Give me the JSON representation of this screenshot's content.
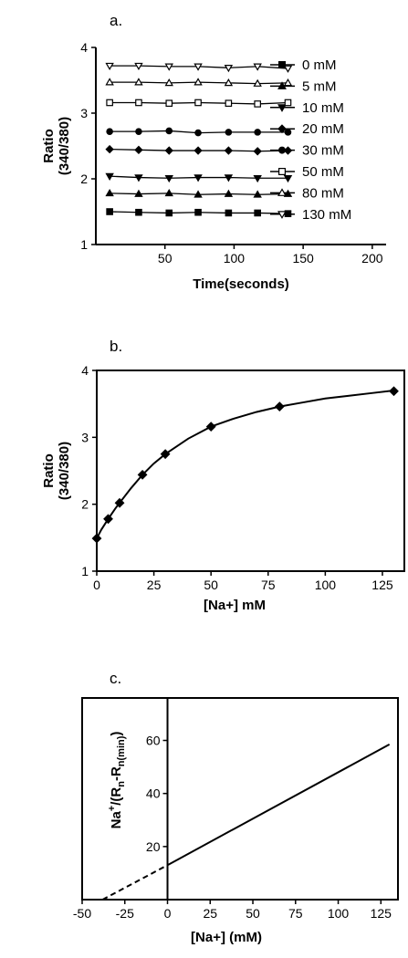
{
  "chart_data": [
    {
      "panel": "a.",
      "type": "line",
      "xlabel": "Time(seconds)",
      "ylabel": [
        "Ratio",
        "(340/380)"
      ],
      "xlim": [
        0,
        210
      ],
      "ylim": [
        1,
        4
      ],
      "xticks": [
        50,
        100,
        150,
        200
      ],
      "yticks": [
        1,
        2,
        3,
        4
      ],
      "legend_position": "right",
      "x": [
        10,
        31,
        53,
        74,
        96,
        117,
        139
      ],
      "series": [
        {
          "name": "0 mM",
          "marker": "square-filled",
          "values": [
            1.5,
            1.49,
            1.48,
            1.49,
            1.48,
            1.48,
            1.47
          ]
        },
        {
          "name": "5 mM",
          "marker": "triangle-up-filled",
          "values": [
            1.78,
            1.77,
            1.78,
            1.76,
            1.77,
            1.76,
            1.77
          ]
        },
        {
          "name": "10 mM",
          "marker": "triangle-down-filled",
          "values": [
            2.04,
            2.02,
            2.01,
            2.02,
            2.02,
            2.01,
            2.01
          ]
        },
        {
          "name": "20 mM",
          "marker": "diamond-filled",
          "values": [
            2.45,
            2.44,
            2.43,
            2.43,
            2.43,
            2.42,
            2.43
          ]
        },
        {
          "name": "30 mM",
          "marker": "circle-filled",
          "values": [
            2.72,
            2.72,
            2.73,
            2.7,
            2.71,
            2.71,
            2.71
          ]
        },
        {
          "name": "50 mM",
          "marker": "square-open",
          "values": [
            3.16,
            3.16,
            3.15,
            3.16,
            3.15,
            3.14,
            3.16
          ]
        },
        {
          "name": "80 mM",
          "marker": "triangle-up-open",
          "values": [
            3.47,
            3.47,
            3.46,
            3.47,
            3.46,
            3.45,
            3.46
          ]
        },
        {
          "name": "130 mM",
          "marker": "triangle-down-open",
          "values": [
            3.72,
            3.72,
            3.71,
            3.71,
            3.69,
            3.71,
            3.68
          ]
        }
      ]
    },
    {
      "panel": "b.",
      "type": "scatter",
      "xlabel": "[Na+] mM",
      "ylabel": [
        "Ratio",
        "(340/380)"
      ],
      "xlim": [
        0,
        135
      ],
      "ylim": [
        1,
        4
      ],
      "xticks": [
        0,
        25,
        50,
        75,
        100,
        125
      ],
      "yticks": [
        1,
        2,
        3,
        4
      ],
      "points": {
        "x": [
          0,
          5,
          10,
          20,
          30,
          50,
          80,
          130
        ],
        "y": [
          1.49,
          1.78,
          2.02,
          2.44,
          2.75,
          3.16,
          3.46,
          3.69
        ]
      },
      "fit_curve": {
        "x": [
          0,
          2,
          5,
          8,
          10,
          15,
          20,
          25,
          30,
          40,
          50,
          60,
          70,
          80,
          90,
          100,
          110,
          120,
          130
        ],
        "y": [
          1.49,
          1.62,
          1.78,
          1.93,
          2.02,
          2.24,
          2.44,
          2.61,
          2.75,
          2.98,
          3.16,
          3.28,
          3.38,
          3.46,
          3.52,
          3.58,
          3.62,
          3.66,
          3.7
        ]
      }
    },
    {
      "panel": "c.",
      "type": "line",
      "xlabel": "[Na+] (mM)",
      "ylabel_parts": {
        "base": "Na",
        "sup": "+",
        "mid": "/(R",
        "sub1": "n",
        "dash": "-R",
        "sub2": "n(min)",
        "end": ")"
      },
      "xlim": [
        -50,
        135
      ],
      "ylim": [
        0,
        76
      ],
      "xticks": [
        -50,
        -25,
        0,
        25,
        50,
        75,
        100,
        125
      ],
      "yticks": [
        20,
        40,
        60
      ],
      "fit_line": {
        "x": [
          0,
          130
        ],
        "y": [
          13.0,
          58.5
        ]
      },
      "extrapolation": {
        "x": [
          -38,
          0
        ],
        "y": [
          0,
          13.0
        ],
        "style": "dashed"
      }
    }
  ]
}
